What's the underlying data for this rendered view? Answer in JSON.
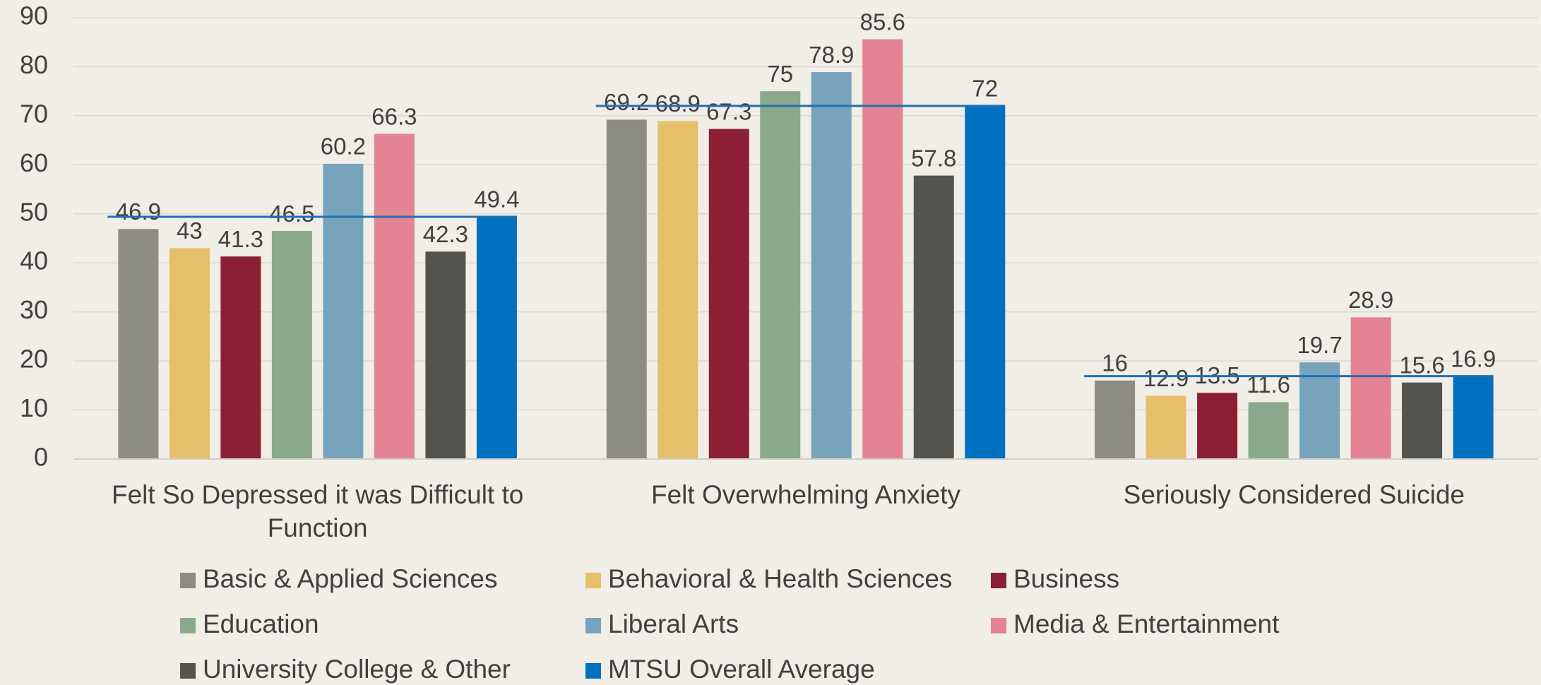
{
  "chart_data": {
    "type": "bar",
    "categories": [
      "Felt So Depressed it was Difficult to Function",
      "Felt Overwhelming Anxiety",
      "Seriously Considered Suicide"
    ],
    "series": [
      {
        "name": "Basic & Applied Sciences",
        "color": "#8c8c84",
        "values": [
          46.9,
          69.2,
          16
        ]
      },
      {
        "name": "Behavioral & Health Sciences",
        "color": "#e6bf6a",
        "values": [
          43,
          68.9,
          12.9
        ]
      },
      {
        "name": "Business",
        "color": "#8c1f33",
        "values": [
          41.3,
          67.3,
          13.5
        ]
      },
      {
        "name": "Education",
        "color": "#8aa98a",
        "values": [
          46.5,
          75,
          11.6
        ]
      },
      {
        "name": "Liberal Arts",
        "color": "#78a3bd",
        "values": [
          60.2,
          78.9,
          19.7
        ]
      },
      {
        "name": "Media & Entertainment",
        "color": "#e38393",
        "values": [
          66.3,
          85.6,
          28.9
        ]
      },
      {
        "name": "University College & Other",
        "color": "#53544f",
        "values": [
          42.3,
          57.8,
          15.6
        ]
      },
      {
        "name": "MTSU Overall Average",
        "color": "#0070c0",
        "values": [
          49.4,
          72,
          16.9
        ]
      }
    ],
    "average_line_color": "#1f6fb5",
    "ylim": [
      0,
      90
    ],
    "yticks": [
      0,
      10,
      20,
      30,
      40,
      50,
      60,
      70,
      80,
      90
    ],
    "grid": true
  }
}
